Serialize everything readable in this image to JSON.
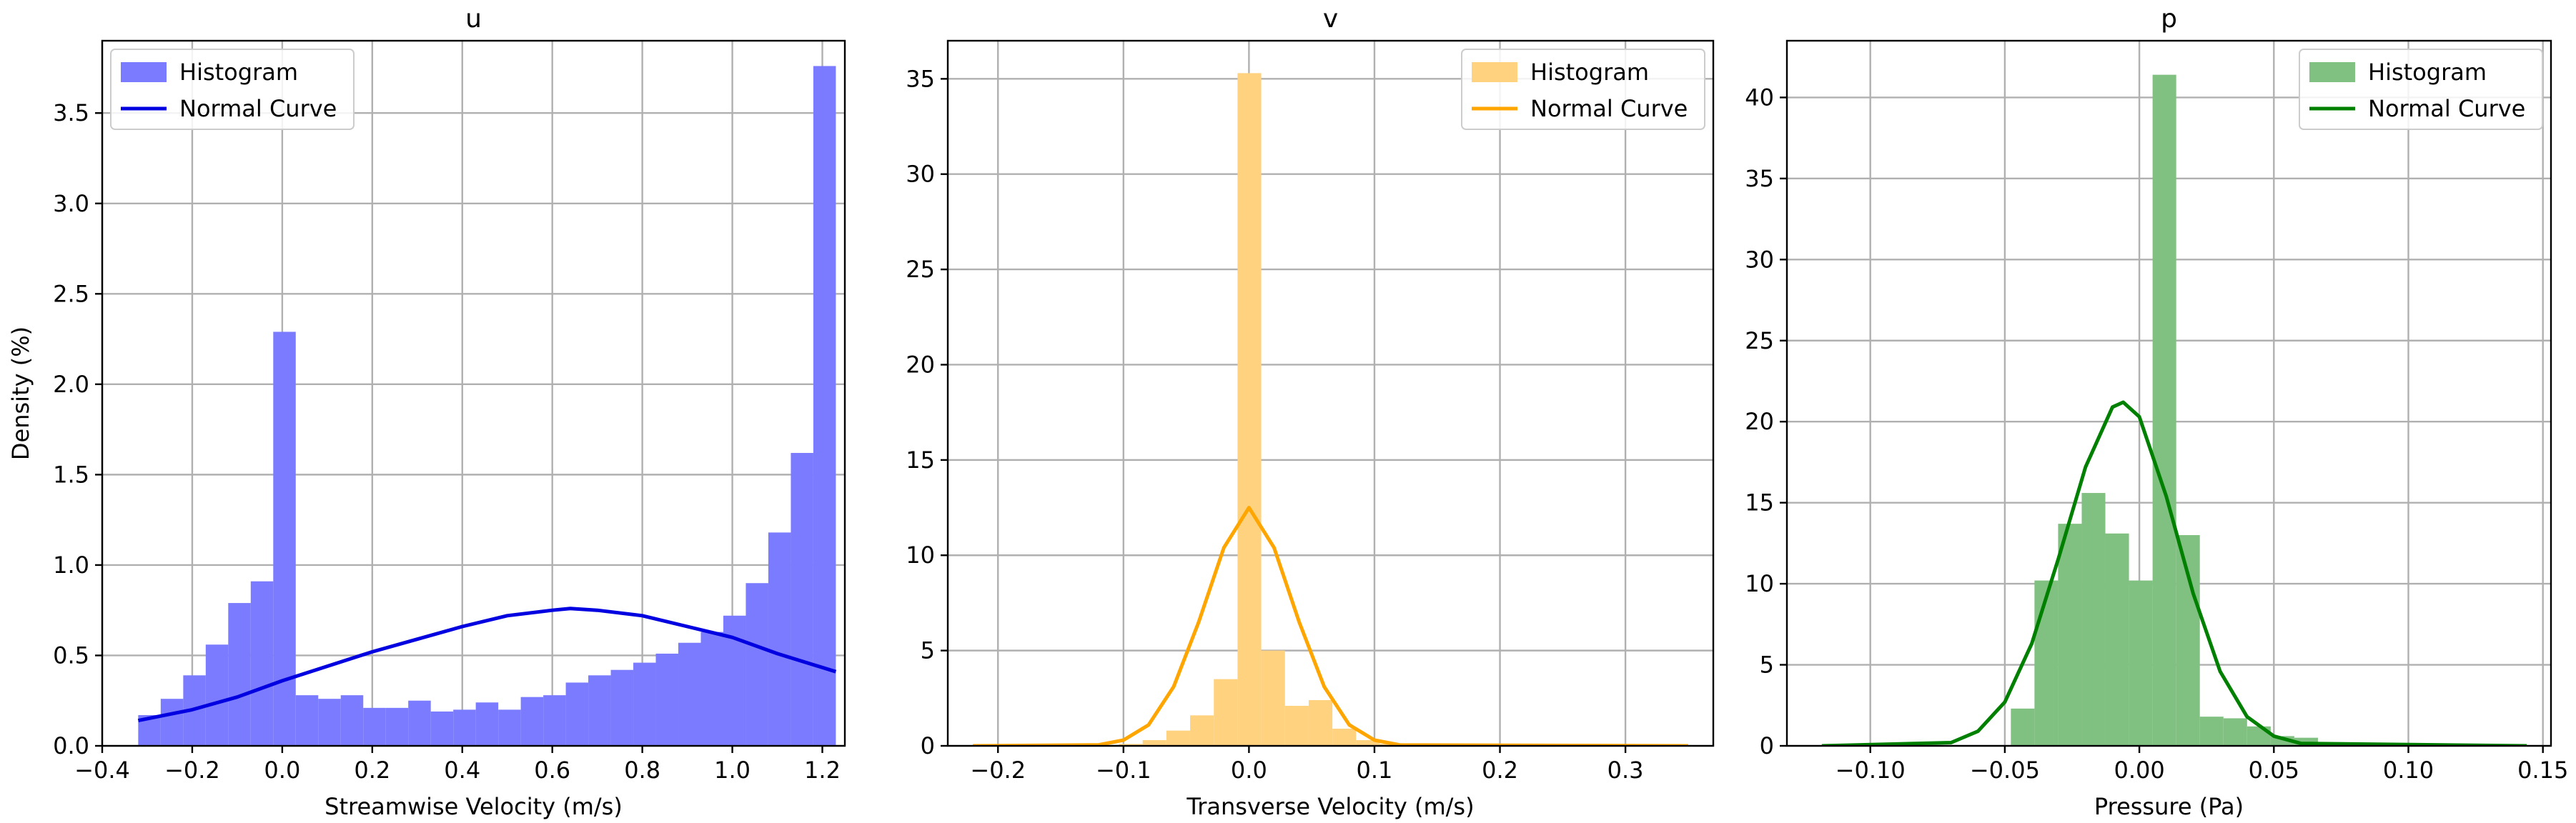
{
  "chart_data": [
    {
      "type": "bar",
      "title": "u",
      "xlabel": "Streamwise Velocity (m/s)",
      "ylabel": "Density (%)",
      "xlim": [
        -0.4,
        1.25
      ],
      "ylim": [
        0,
        3.9
      ],
      "xticks": [
        -0.4,
        -0.2,
        0.0,
        0.2,
        0.4,
        0.6,
        0.8,
        1.0,
        1.2
      ],
      "xtick_labels": [
        "−0.4",
        "−0.2",
        "0.0",
        "0.2",
        "0.4",
        "0.6",
        "0.8",
        "1.0",
        "1.2"
      ],
      "yticks": [
        0,
        0.5,
        1.0,
        1.5,
        2.0,
        2.5,
        3.0,
        3.5
      ],
      "ytick_labels": [
        "0.0",
        "0.5",
        "1.0",
        "1.5",
        "2.0",
        "2.5",
        "3.0",
        "3.5"
      ],
      "grid": true,
      "legend_position": "top-left",
      "histogram": {
        "name": "Histogram",
        "color": "#7b7bff",
        "bin_start": -0.32,
        "bin_width": 0.05,
        "values": [
          0.17,
          0.26,
          0.39,
          0.56,
          0.79,
          0.91,
          2.29,
          0.28,
          0.26,
          0.28,
          0.21,
          0.21,
          0.25,
          0.19,
          0.2,
          0.24,
          0.2,
          0.27,
          0.28,
          0.35,
          0.39,
          0.42,
          0.46,
          0.51,
          0.57,
          0.63,
          0.72,
          0.9,
          1.18,
          1.62,
          3.76
        ]
      },
      "curve": {
        "name": "Normal Curve",
        "color": "#0000e0",
        "x": [
          -0.32,
          -0.2,
          -0.1,
          0.0,
          0.1,
          0.2,
          0.3,
          0.4,
          0.5,
          0.6,
          0.64,
          0.7,
          0.8,
          0.9,
          1.0,
          1.1,
          1.23
        ],
        "y": [
          0.14,
          0.2,
          0.27,
          0.36,
          0.44,
          0.52,
          0.59,
          0.66,
          0.72,
          0.75,
          0.76,
          0.75,
          0.72,
          0.66,
          0.6,
          0.51,
          0.41
        ]
      }
    },
    {
      "type": "bar",
      "title": "v",
      "xlabel": "Transverse Velocity (m/s)",
      "ylabel": "",
      "xlim": [
        -0.24,
        0.37
      ],
      "ylim": [
        0,
        37
      ],
      "xticks": [
        -0.2,
        -0.1,
        0.0,
        0.1,
        0.2,
        0.3
      ],
      "xtick_labels": [
        "−0.2",
        "−0.1",
        "0.0",
        "0.1",
        "0.2",
        "0.3"
      ],
      "yticks": [
        0,
        5,
        10,
        15,
        20,
        25,
        30,
        35
      ],
      "ytick_labels": [
        "0",
        "5",
        "10",
        "15",
        "20",
        "25",
        "30",
        "35"
      ],
      "grid": true,
      "legend_position": "top-right",
      "histogram": {
        "name": "Histogram",
        "color": "#ffd27f",
        "bin_start": -0.217,
        "bin_width": 0.0189,
        "values": [
          0,
          0,
          0,
          0,
          0,
          0,
          0.1,
          0.3,
          0.8,
          1.6,
          3.5,
          35.3,
          5.0,
          2.1,
          2.4,
          0.9,
          0.3,
          0.1,
          0,
          0,
          0,
          0,
          0,
          0,
          0,
          0,
          0,
          0,
          0,
          0
        ]
      },
      "curve": {
        "name": "Normal Curve",
        "color": "#ffa500",
        "x": [
          -0.22,
          -0.12,
          -0.1,
          -0.08,
          -0.06,
          -0.04,
          -0.02,
          0.0,
          0.02,
          0.04,
          0.06,
          0.08,
          0.1,
          0.12,
          0.35
        ],
        "y": [
          0,
          0.05,
          0.3,
          1.1,
          3.1,
          6.5,
          10.4,
          12.5,
          10.4,
          6.5,
          3.1,
          1.1,
          0.3,
          0.05,
          0
        ]
      }
    },
    {
      "type": "bar",
      "title": "p",
      "xlabel": "Pressure (Pa)",
      "ylabel": "",
      "xlim": [
        -0.131,
        0.153
      ],
      "ylim": [
        0,
        43.5
      ],
      "xticks": [
        -0.1,
        -0.05,
        0.0,
        0.05,
        0.1,
        0.15
      ],
      "xtick_labels": [
        "−0.10",
        "−0.05",
        "0.00",
        "0.05",
        "0.10",
        "0.15"
      ],
      "yticks": [
        0,
        5,
        10,
        15,
        20,
        25,
        30,
        35,
        40
      ],
      "ytick_labels": [
        "0",
        "5",
        "10",
        "15",
        "20",
        "25",
        "30",
        "35",
        "40"
      ],
      "grid": true,
      "legend_position": "top-right",
      "histogram": {
        "name": "Histogram",
        "color": "#80c080",
        "bin_start": -0.118,
        "bin_width": 0.00878,
        "values": [
          0,
          0,
          0,
          0,
          0,
          0,
          0,
          0,
          2.3,
          10.2,
          13.7,
          15.6,
          13.1,
          10.2,
          41.4,
          13.0,
          1.8,
          1.7,
          1.2,
          0.6,
          0.5,
          0.2,
          0.1,
          0,
          0,
          0,
          0,
          0,
          0,
          0,
          0,
          0
        ]
      },
      "curve": {
        "name": "Normal Curve",
        "color": "#008000",
        "x": [
          -0.118,
          -0.07,
          -0.06,
          -0.05,
          -0.04,
          -0.03,
          -0.02,
          -0.01,
          -0.006,
          0.0,
          0.01,
          0.02,
          0.03,
          0.04,
          0.05,
          0.06,
          0.144
        ],
        "y": [
          0,
          0.2,
          0.9,
          2.7,
          6.3,
          11.6,
          17.2,
          20.9,
          21.2,
          20.3,
          15.4,
          9.4,
          4.6,
          1.8,
          0.6,
          0.15,
          0
        ]
      }
    }
  ]
}
